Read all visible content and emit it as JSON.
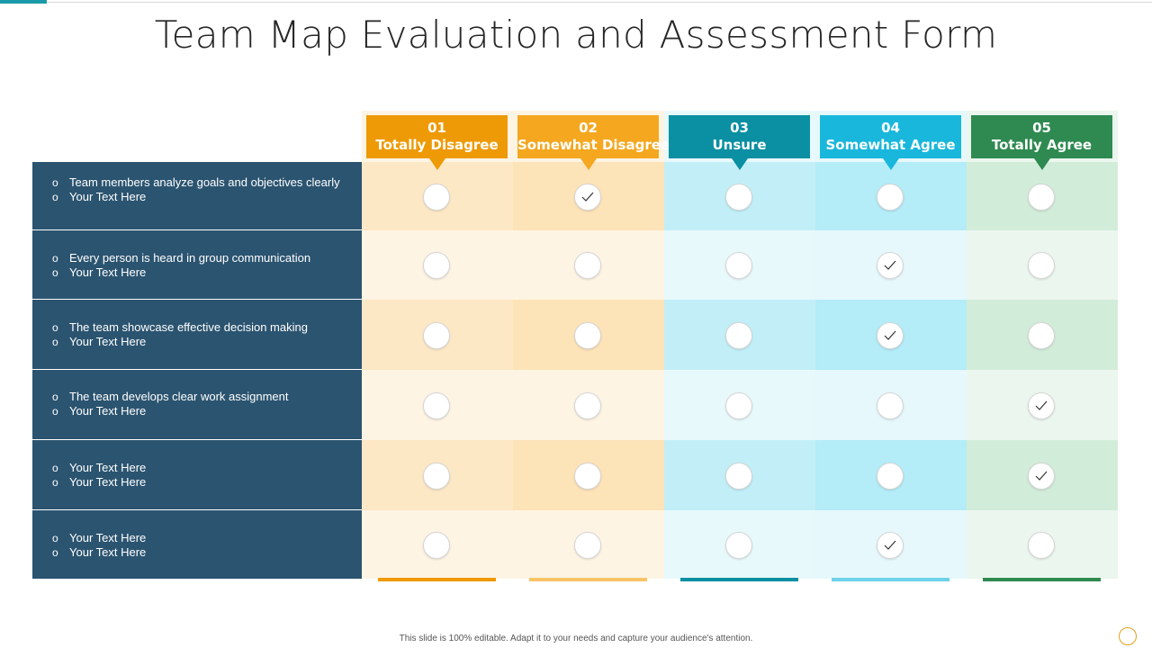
{
  "title": "Team Map Evaluation and Assessment Form",
  "columns": [
    {
      "num": "01",
      "label": "Totally Disagree",
      "header_color": "#ee9a06",
      "bg_dark": "#fde8c6",
      "bg_light": "#fef4e4",
      "bar_color": "#ee9a06"
    },
    {
      "num": "02",
      "label": "Somewhat Disagree",
      "header_color": "#f4a71f",
      "bg_dark": "#fde3b8",
      "bg_light": "#fef4e3",
      "bar_color": "#f8c466"
    },
    {
      "num": "03",
      "label": "Unsure",
      "header_color": "#0a8fa3",
      "bg_dark": "#c2eff7",
      "bg_light": "#e8f9fc",
      "bar_color": "#0a8fa3"
    },
    {
      "num": "04",
      "label": "Somewhat Agree",
      "header_color": "#19b7dc",
      "bg_dark": "#b4ecf8",
      "bg_light": "#e6f8fc",
      "bar_color": "#6dd2ea"
    },
    {
      "num": "05",
      "label": "Totally Agree",
      "header_color": "#2e8a51",
      "bg_dark": "#d2ecda",
      "bg_light": "#ebf6ee",
      "bar_color": "#2e8a51"
    }
  ],
  "rows": [
    {
      "items": [
        "Team members analyze goals and objectives clearly",
        "Your Text Here"
      ],
      "selected": 1
    },
    {
      "items": [
        "Every person is heard in group communication",
        "Your Text Here"
      ],
      "selected": 3
    },
    {
      "items": [
        "The team showcase effective decision making",
        "Your Text Here"
      ],
      "selected": 3
    },
    {
      "items": [
        "The team develops clear work assignment",
        "Your Text Here"
      ],
      "selected": 4
    },
    {
      "items": [
        "Your Text Here",
        "Your Text Here"
      ],
      "selected": 4
    },
    {
      "items": [
        "Your Text Here",
        "Your Text Here"
      ],
      "selected": 3
    }
  ],
  "footer": "This slide is 100% editable. Adapt it to your needs and capture your audience's attention."
}
